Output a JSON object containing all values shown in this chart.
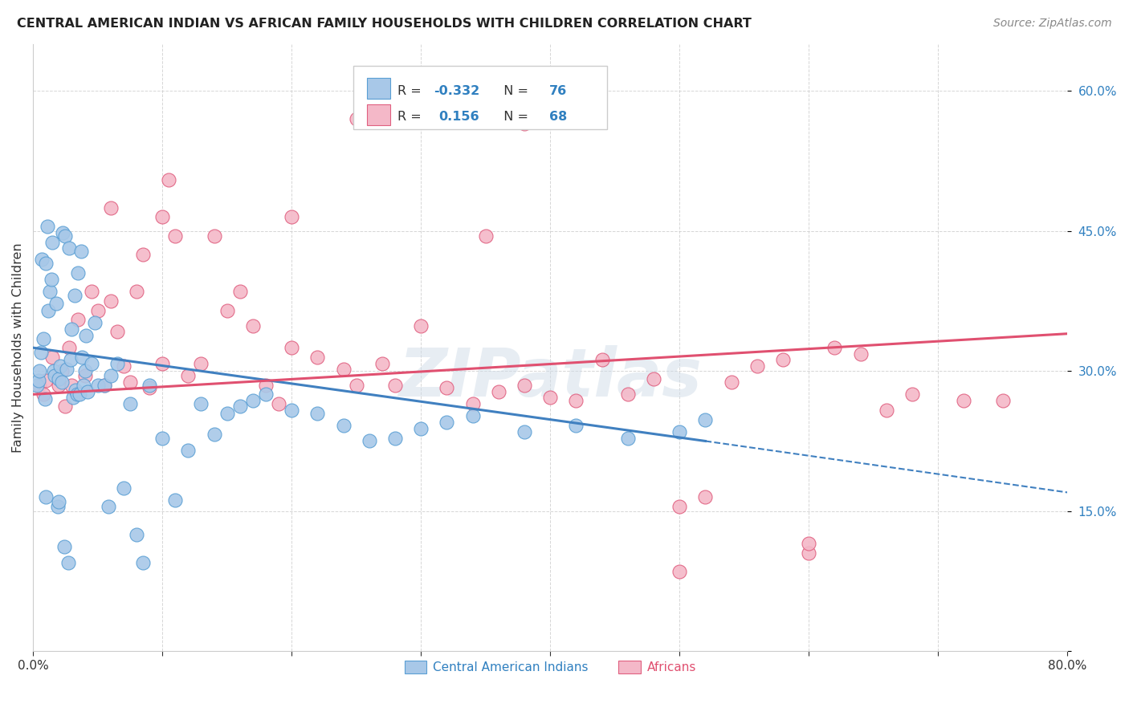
{
  "title": "CENTRAL AMERICAN INDIAN VS AFRICAN FAMILY HOUSEHOLDS WITH CHILDREN CORRELATION CHART",
  "source": "Source: ZipAtlas.com",
  "ylabel": "Family Households with Children",
  "xmin": 0.0,
  "xmax": 80.0,
  "ymin": 0.0,
  "ymax": 65.0,
  "yticks": [
    0.0,
    15.0,
    30.0,
    45.0,
    60.0
  ],
  "blue_color": "#a8c8e8",
  "blue_edge": "#5a9fd4",
  "pink_color": "#f4b8c8",
  "pink_edge": "#e06080",
  "trend_blue": "#4080c0",
  "trend_pink": "#e05070",
  "watermark": "ZIPatlas",
  "blue_x": [
    0.3,
    0.4,
    0.5,
    0.6,
    0.7,
    0.8,
    0.9,
    1.0,
    1.0,
    1.1,
    1.2,
    1.3,
    1.4,
    1.5,
    1.6,
    1.7,
    1.8,
    1.9,
    2.0,
    2.0,
    2.1,
    2.2,
    2.3,
    2.4,
    2.5,
    2.6,
    2.7,
    2.8,
    2.9,
    3.0,
    3.1,
    3.2,
    3.3,
    3.4,
    3.5,
    3.6,
    3.7,
    3.8,
    3.9,
    4.0,
    4.1,
    4.2,
    4.5,
    5.0,
    5.5,
    5.8,
    6.0,
    6.5,
    7.0,
    7.5,
    8.0,
    8.5,
    9.0,
    10.0,
    11.0,
    12.0,
    13.0,
    14.0,
    15.0,
    16.0,
    17.0,
    18.0,
    20.0,
    22.0,
    24.0,
    26.0,
    28.0,
    30.0,
    32.0,
    34.0,
    38.0,
    42.0,
    46.0,
    50.0,
    52.0,
    4.8
  ],
  "blue_y": [
    28.5,
    29.0,
    30.0,
    32.0,
    42.0,
    33.5,
    27.0,
    41.5,
    16.5,
    45.5,
    36.5,
    38.5,
    39.8,
    43.8,
    30.0,
    29.5,
    37.2,
    15.5,
    29.2,
    16.0,
    30.5,
    28.8,
    44.8,
    11.2,
    44.5,
    30.2,
    9.5,
    43.2,
    31.2,
    34.5,
    27.2,
    38.1,
    28.0,
    27.5,
    40.5,
    27.5,
    42.8,
    31.5,
    28.5,
    30.0,
    33.8,
    27.8,
    30.8,
    28.5,
    28.5,
    15.5,
    29.5,
    30.8,
    17.5,
    26.5,
    12.5,
    9.5,
    28.5,
    22.8,
    16.2,
    21.5,
    26.5,
    23.2,
    25.5,
    26.2,
    26.8,
    27.5,
    25.8,
    25.5,
    24.2,
    22.5,
    22.8,
    23.8,
    24.5,
    25.2,
    23.5,
    24.2,
    22.8,
    23.5,
    24.8,
    35.2
  ],
  "pink_x": [
    0.5,
    0.8,
    1.0,
    1.5,
    2.0,
    2.2,
    2.5,
    2.8,
    3.0,
    3.5,
    4.0,
    4.5,
    5.0,
    5.5,
    6.0,
    6.5,
    7.0,
    7.5,
    8.0,
    8.5,
    9.0,
    10.0,
    10.5,
    11.0,
    12.0,
    13.0,
    14.0,
    15.0,
    16.0,
    17.0,
    18.0,
    19.0,
    20.0,
    22.0,
    24.0,
    25.0,
    27.0,
    28.0,
    30.0,
    32.0,
    34.0,
    36.0,
    38.0,
    40.0,
    42.0,
    44.0,
    46.0,
    48.0,
    50.0,
    52.0,
    54.0,
    56.0,
    58.0,
    60.0,
    62.0,
    64.0,
    66.0,
    68.0,
    72.0,
    75.0,
    25.0,
    38.0,
    50.0,
    60.0,
    6.0,
    10.0,
    20.0,
    35.0
  ],
  "pink_y": [
    28.5,
    27.5,
    29.0,
    31.5,
    28.5,
    30.0,
    26.2,
    32.5,
    28.5,
    35.5,
    29.5,
    38.5,
    36.5,
    28.5,
    37.5,
    34.2,
    30.5,
    28.8,
    38.5,
    42.5,
    28.2,
    30.8,
    50.5,
    44.5,
    29.5,
    30.8,
    44.5,
    36.5,
    38.5,
    34.8,
    28.5,
    26.5,
    32.5,
    31.5,
    30.2,
    28.5,
    30.8,
    28.5,
    34.8,
    28.2,
    26.5,
    27.8,
    28.5,
    27.2,
    26.8,
    31.2,
    27.5,
    29.2,
    15.5,
    16.5,
    28.8,
    30.5,
    31.2,
    10.5,
    32.5,
    31.8,
    25.8,
    27.5,
    26.8,
    26.8,
    57.0,
    56.5,
    8.5,
    11.5,
    47.5,
    46.5,
    46.5,
    44.5
  ],
  "blue_line_x0": 0.0,
  "blue_line_y0": 32.5,
  "blue_line_x1": 52.0,
  "blue_line_y1": 22.5,
  "blue_dash_x0": 52.0,
  "blue_dash_y0": 22.5,
  "blue_dash_x1": 80.0,
  "blue_dash_y1": 17.0,
  "pink_line_x0": 0.0,
  "pink_line_y0": 27.5,
  "pink_line_x1": 80.0,
  "pink_line_y1": 34.0
}
